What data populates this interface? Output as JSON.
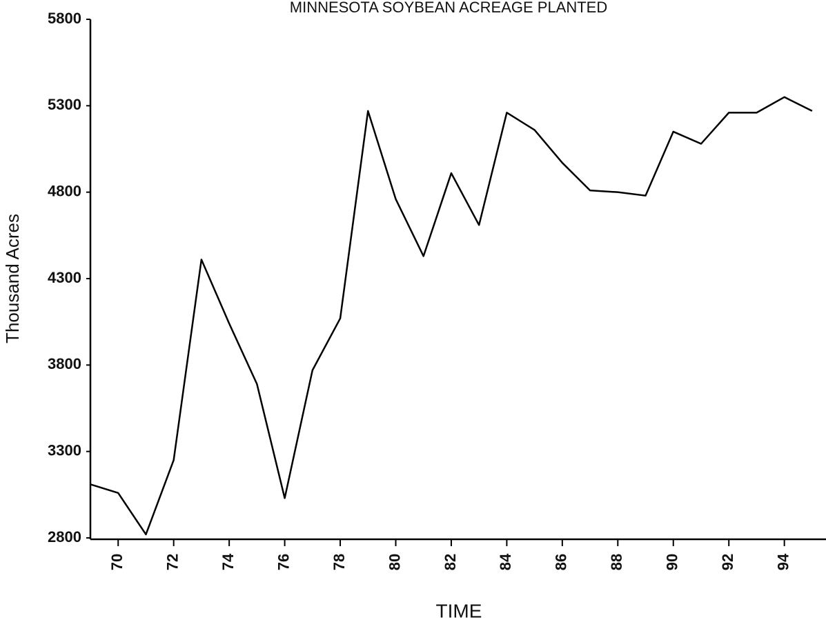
{
  "chart_data": {
    "type": "line",
    "title": "MINNESOTA SOYBEAN ACREAGE PLANTED",
    "y_label": "Thousand Acres",
    "x_label": "TIME",
    "x": [
      69,
      70,
      71,
      72,
      73,
      74,
      75,
      76,
      77,
      78,
      79,
      80,
      81,
      82,
      83,
      84,
      85,
      86,
      87,
      88,
      89,
      90,
      91,
      92,
      93,
      94,
      95
    ],
    "series": [
      {
        "color": "#000000",
        "values": [
          3110,
          3060,
          2820,
          3250,
          4410,
          4040,
          3690,
          3030,
          3770,
          4070,
          5270,
          4760,
          4430,
          4910,
          4610,
          5260,
          5160,
          4970,
          4810,
          4800,
          4780,
          5150,
          5080,
          5260,
          5260,
          5350,
          5270
        ]
      }
    ],
    "xlim": [
      69,
      95.5
    ],
    "ylim": [
      2800,
      5800
    ],
    "xticks": [
      70,
      72,
      74,
      76,
      78,
      80,
      82,
      84,
      86,
      88,
      90,
      92,
      94
    ],
    "yticks": [
      2800,
      3300,
      3800,
      4300,
      4800,
      5300,
      5800
    ],
    "grid": false
  }
}
